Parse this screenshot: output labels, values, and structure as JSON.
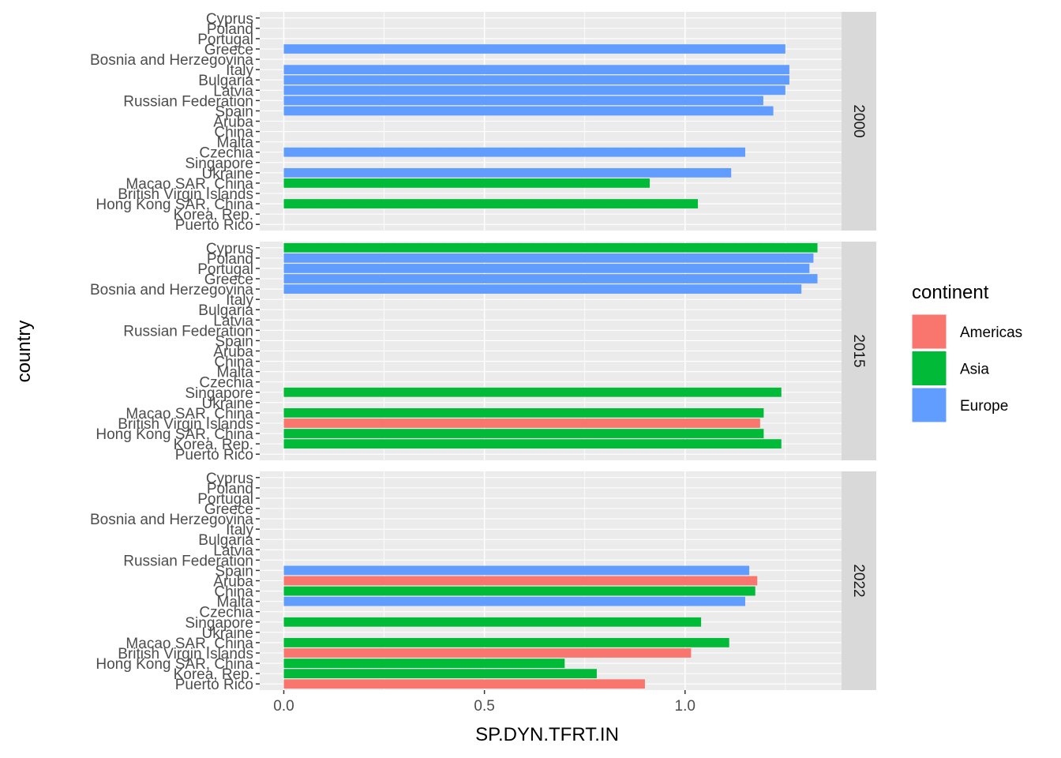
{
  "chart_data": {
    "type": "bar",
    "orientation": "horizontal",
    "xlabel": "SP.DYN.TFRT.IN",
    "ylabel": "country",
    "xlim": [
      -0.06,
      1.39
    ],
    "x_ticks": [
      0.0,
      0.5,
      1.0
    ],
    "x_tick_labels": [
      "0.0",
      "0.5",
      "1.0"
    ],
    "grid": true,
    "legend_position": "right",
    "categories": [
      "Cyprus",
      "Poland",
      "Portugal",
      "Greece",
      "Bosnia and Herzegovina",
      "Italy",
      "Bulgaria",
      "Latvia",
      "Russian Federation",
      "Spain",
      "Aruba",
      "China",
      "Malta",
      "Czechia",
      "Singapore",
      "Ukraine",
      "Macao SAR, China",
      "British Virgin Islands",
      "Hong Kong SAR, China",
      "Korea, Rep.",
      "Puerto Rico"
    ],
    "legend": {
      "title": "continent",
      "entries": [
        {
          "name": "Americas",
          "color": "#F8766D"
        },
        {
          "name": "Asia",
          "color": "#00BA38"
        },
        {
          "name": "Europe",
          "color": "#619CFF"
        }
      ]
    },
    "facets": [
      {
        "label": "2000",
        "bars": [
          {
            "country": "Greece",
            "value": 1.25,
            "continent": "Europe"
          },
          {
            "country": "Italy",
            "value": 1.26,
            "continent": "Europe"
          },
          {
            "country": "Bulgaria",
            "value": 1.26,
            "continent": "Europe"
          },
          {
            "country": "Latvia",
            "value": 1.25,
            "continent": "Europe"
          },
          {
            "country": "Russian Federation",
            "value": 1.195,
            "continent": "Europe"
          },
          {
            "country": "Spain",
            "value": 1.22,
            "continent": "Europe"
          },
          {
            "country": "Czechia",
            "value": 1.15,
            "continent": "Europe"
          },
          {
            "country": "Ukraine",
            "value": 1.115,
            "continent": "Europe"
          },
          {
            "country": "Macao SAR, China",
            "value": 0.912,
            "continent": "Asia"
          },
          {
            "country": "Hong Kong SAR, China",
            "value": 1.032,
            "continent": "Asia"
          }
        ]
      },
      {
        "label": "2015",
        "bars": [
          {
            "country": "Cyprus",
            "value": 1.33,
            "continent": "Asia"
          },
          {
            "country": "Poland",
            "value": 1.32,
            "continent": "Europe"
          },
          {
            "country": "Portugal",
            "value": 1.31,
            "continent": "Europe"
          },
          {
            "country": "Greece",
            "value": 1.33,
            "continent": "Europe"
          },
          {
            "country": "Bosnia and Herzegovina",
            "value": 1.29,
            "continent": "Europe"
          },
          {
            "country": "Singapore",
            "value": 1.24,
            "continent": "Asia"
          },
          {
            "country": "Macao SAR, China",
            "value": 1.196,
            "continent": "Asia"
          },
          {
            "country": "British Virgin Islands",
            "value": 1.187,
            "continent": "Americas"
          },
          {
            "country": "Hong Kong SAR, China",
            "value": 1.196,
            "continent": "Asia"
          },
          {
            "country": "Korea, Rep.",
            "value": 1.24,
            "continent": "Asia"
          }
        ]
      },
      {
        "label": "2022",
        "bars": [
          {
            "country": "Spain",
            "value": 1.16,
            "continent": "Europe"
          },
          {
            "country": "Aruba",
            "value": 1.18,
            "continent": "Americas"
          },
          {
            "country": "China",
            "value": 1.175,
            "continent": "Asia"
          },
          {
            "country": "Malta",
            "value": 1.15,
            "continent": "Europe"
          },
          {
            "country": "Singapore",
            "value": 1.04,
            "continent": "Asia"
          },
          {
            "country": "Macao SAR, China",
            "value": 1.11,
            "continent": "Asia"
          },
          {
            "country": "British Virgin Islands",
            "value": 1.015,
            "continent": "Americas"
          },
          {
            "country": "Hong Kong SAR, China",
            "value": 0.7,
            "continent": "Asia"
          },
          {
            "country": "Korea, Rep.",
            "value": 0.78,
            "continent": "Asia"
          },
          {
            "country": "Puerto Rico",
            "value": 0.9,
            "continent": "Americas"
          }
        ]
      }
    ]
  }
}
